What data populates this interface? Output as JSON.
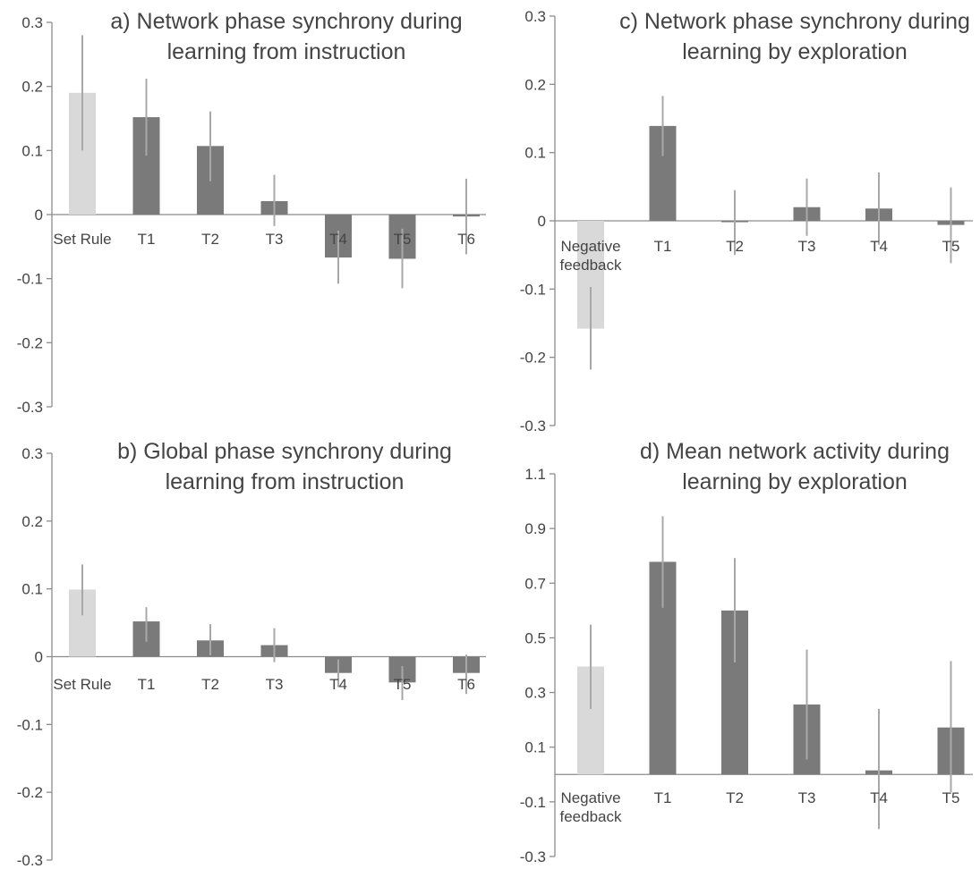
{
  "colors": {
    "bar_dark": "#7a7a7a",
    "bar_light": "#d9d9d9",
    "error_bar": "#a8a8a8",
    "axis": "#8c8c8c",
    "text": "#444444"
  },
  "chart_data": [
    {
      "id": "a",
      "type": "bar",
      "title_lines": [
        "a) Network phase synchrony during",
        "learning from instruction"
      ],
      "categories": [
        "Set Rule",
        "T1",
        "T2",
        "T3",
        "T4",
        "T5",
        "T6"
      ],
      "values": [
        0.19,
        0.152,
        0.107,
        0.021,
        -0.067,
        -0.069,
        -0.003
      ],
      "error_low": [
        0.1,
        0.092,
        0.052,
        -0.018,
        -0.108,
        -0.115,
        -0.062
      ],
      "error_high": [
        0.28,
        0.212,
        0.161,
        0.062,
        -0.025,
        -0.022,
        0.056
      ],
      "highlight": [
        0,
        null
      ],
      "ylim": [
        -0.3,
        0.3
      ],
      "yticks": [
        "-0.3",
        "-0.2",
        "-0.1",
        "0",
        "0.1",
        "0.2",
        "0.3"
      ],
      "ytick_values": [
        -0.3,
        -0.2,
        -0.1,
        0,
        0.1,
        0.2,
        0.3
      ],
      "xlabel": "",
      "ylabel": "",
      "grid": false
    },
    {
      "id": "b",
      "type": "bar",
      "title_lines": [
        "b) Global phase synchrony during",
        "learning from instruction"
      ],
      "categories": [
        "Set Rule",
        "T1",
        "T2",
        "T3",
        "T4",
        "T5",
        "T6"
      ],
      "values": [
        0.099,
        0.052,
        0.024,
        0.017,
        -0.024,
        -0.038,
        -0.024
      ],
      "error_low": [
        0.061,
        0.022,
        0.002,
        -0.008,
        -0.045,
        -0.064,
        -0.055
      ],
      "error_high": [
        0.136,
        0.073,
        0.048,
        0.042,
        -0.004,
        -0.014,
        0.003
      ],
      "ylim": [
        -0.3,
        0.3
      ],
      "yticks": [
        "-0.3",
        "-0.2",
        "-0.1",
        "0",
        "0.1",
        "0.2",
        "0.3"
      ],
      "ytick_values": [
        -0.3,
        -0.2,
        -0.1,
        0,
        0.1,
        0.2,
        0.3
      ],
      "xlabel": "",
      "ylabel": "",
      "grid": false
    },
    {
      "id": "c",
      "type": "bar",
      "title_lines": [
        "c) Network phase synchrony during",
        "learning by exploration"
      ],
      "categories": [
        "Negative feedback",
        "T1",
        "T2",
        "T3",
        "T4",
        "T5"
      ],
      "values": [
        -0.158,
        0.139,
        -0.002,
        0.02,
        0.018,
        -0.006
      ],
      "error_low": [
        -0.218,
        0.095,
        -0.05,
        -0.022,
        -0.035,
        -0.062
      ],
      "error_high": [
        -0.097,
        0.183,
        0.045,
        0.062,
        0.071,
        0.049
      ],
      "ylim": [
        -0.3,
        0.3
      ],
      "yticks": [
        "-0.3",
        "-0.2",
        "-0.1",
        "0",
        "0.1",
        "0.2",
        "0.3"
      ],
      "ytick_values": [
        -0.3,
        -0.2,
        -0.1,
        0,
        0.1,
        0.2,
        0.3
      ],
      "xlabel": "",
      "ylabel": "",
      "grid": false
    },
    {
      "id": "d",
      "type": "bar",
      "title_lines": [
        "d) Mean network activity during",
        "learning by exploration"
      ],
      "categories": [
        "Negative feedback",
        "T1",
        "T2",
        "T3",
        "T4",
        "T5"
      ],
      "values": [
        0.395,
        0.778,
        0.6,
        0.256,
        0.015,
        0.172
      ],
      "error_low": [
        0.24,
        0.61,
        0.41,
        0.055,
        -0.2,
        -0.065
      ],
      "error_high": [
        0.548,
        0.945,
        0.792,
        0.457,
        0.24,
        0.415
      ],
      "ylim": [
        -0.3,
        1.1
      ],
      "yticks": [
        "-0.3",
        "-0.1",
        "0.1",
        "0.3",
        "0.5",
        "0.7",
        "0.9",
        "1.1"
      ],
      "ytick_values": [
        -0.3,
        -0.1,
        0.1,
        0.3,
        0.5,
        0.7,
        0.9,
        1.1
      ],
      "xlabel": "",
      "ylabel": "",
      "grid": false
    }
  ]
}
